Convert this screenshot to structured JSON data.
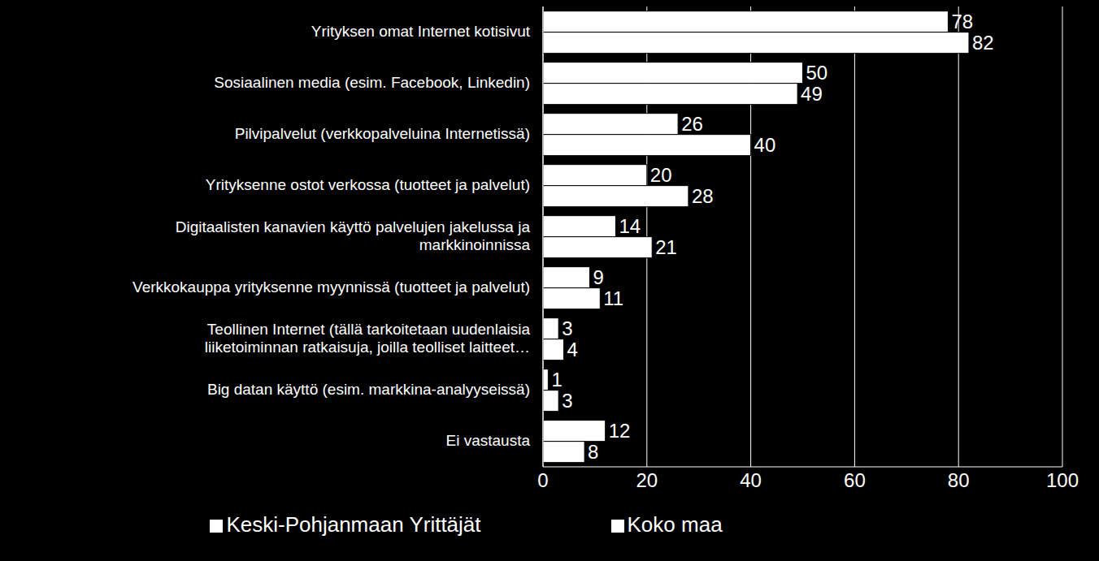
{
  "chart_data": {
    "type": "bar",
    "orientation": "horizontal",
    "categories": [
      "Yrityksen omat Internet kotisivut",
      "Sosiaalinen media (esim. Facebook, Linkedin)",
      "Pilvipalvelut  (verkkopalveluina Internetissä)",
      "Yrityksenne ostot verkossa (tuotteet ja palvelut)",
      "Digitaalisten kanavien käyttö palvelujen jakelussa ja markkinoinnissa",
      "Verkkokauppa yrityksenne myynnissä (tuotteet ja palvelut)",
      "Teollinen Internet (tällä tarkoitetaan uudenlaisia liiketoiminnan ratkaisuja, joilla teolliset laitteet…",
      "Big datan käyttö (esim. markkina-analyyseissä)",
      "Ei vastausta"
    ],
    "series": [
      {
        "name": "Keski-Pohjanmaan Yrittäjät",
        "color": "#ffffff",
        "values": [
          78,
          50,
          26,
          20,
          14,
          9,
          3,
          1,
          12
        ]
      },
      {
        "name": "Koko maa",
        "color": "#ffffff",
        "values": [
          82,
          49,
          40,
          28,
          21,
          11,
          4,
          3,
          8
        ]
      }
    ],
    "xlim": [
      0,
      100
    ],
    "xticks": [
      0,
      20,
      40,
      60,
      80,
      100
    ],
    "grid": true,
    "data_labels": true,
    "legend": "bottom"
  }
}
